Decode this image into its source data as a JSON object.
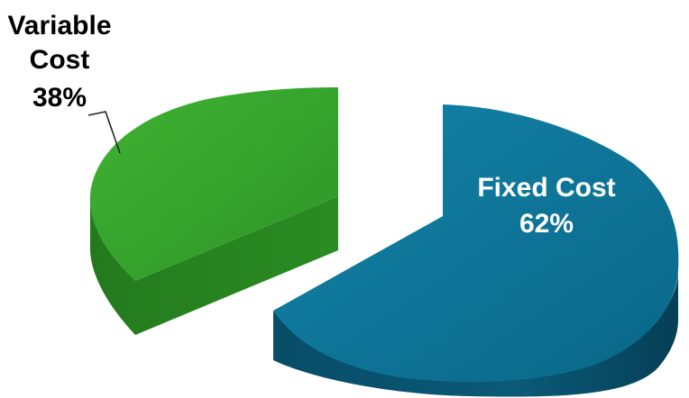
{
  "chart_data": {
    "type": "pie",
    "title": "",
    "slices": [
      {
        "name": "Fixed Cost",
        "percent_label": "62%",
        "value": 62,
        "color": "#0f7396",
        "exploded": true,
        "label_position": "inside"
      },
      {
        "name": "Variable Cost",
        "percent_label": "38%",
        "value": 38,
        "color": "#35a42d",
        "exploded": true,
        "label_position": "outside-with-leader"
      }
    ],
    "style": "3d-exploded"
  },
  "labels": {
    "fixed_name": "Fixed Cost",
    "fixed_percent": "62%",
    "variable_line1": "Variable",
    "variable_line2": "Cost",
    "variable_percent": "38%"
  }
}
